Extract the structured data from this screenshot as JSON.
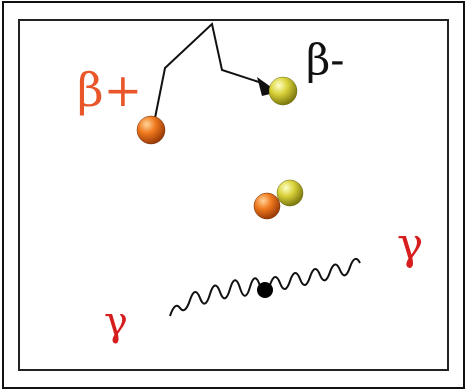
{
  "labels": {
    "beta_plus": "β+",
    "beta_minus": "β-",
    "gamma_left": "γ",
    "gamma_right": "γ"
  },
  "colors": {
    "beta_plus_text": "#e8562a",
    "beta_minus_text": "#111111",
    "gamma_text": "#d71e1e",
    "positron_fill": "#f07a1e",
    "electron_fill": "#d9d23a",
    "wave_stroke": "#111111",
    "dot_fill": "#000000"
  },
  "icons": {
    "positron": "positron-sphere-icon",
    "electron": "electron-sphere-icon",
    "annihilation": "annihilation-pair-icon",
    "photon": "photon-wave-icon"
  }
}
